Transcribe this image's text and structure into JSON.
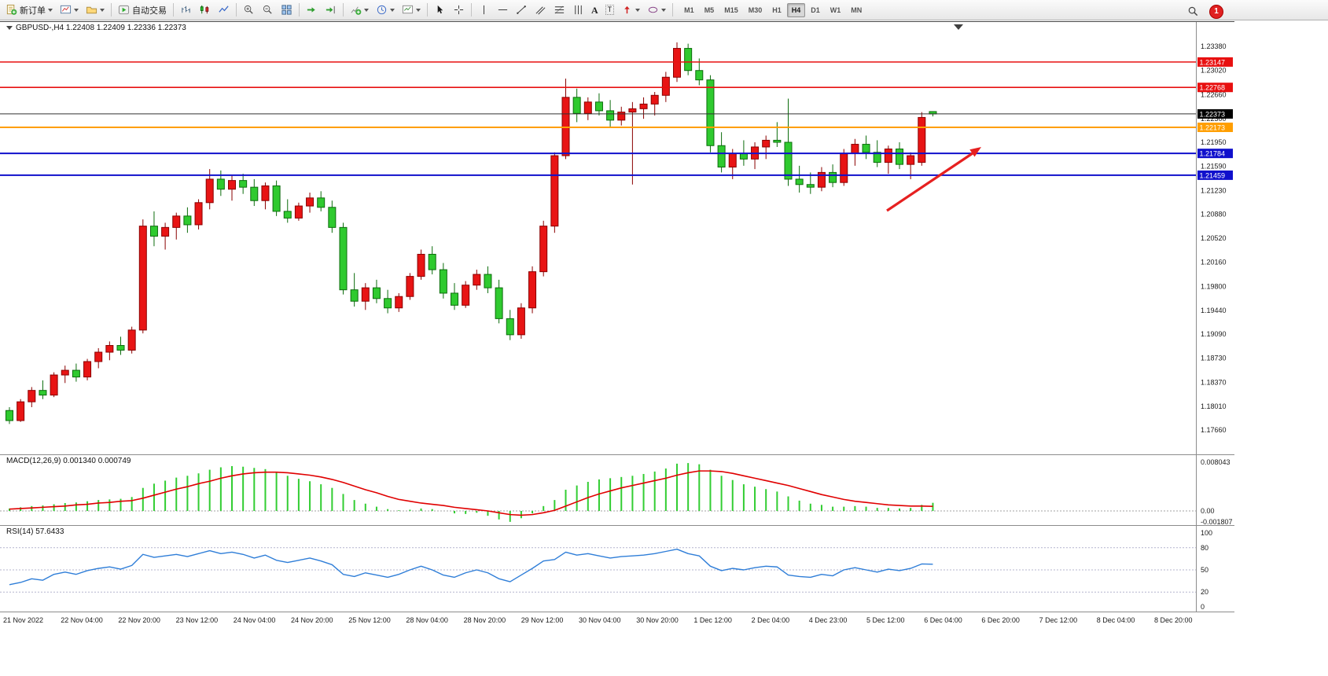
{
  "toolbar": {
    "new_order_label": "新订单",
    "auto_trading_label": "自动交易",
    "text_tool_glyph": "A",
    "label_tool_glyph": "T",
    "timeframes": [
      "M1",
      "M5",
      "M15",
      "M30",
      "H1",
      "H4",
      "D1",
      "W1",
      "MN"
    ],
    "active_timeframe": "H4",
    "notification_count": "1"
  },
  "chart_data": [
    {
      "type": "candlestick",
      "symbol": "GBPUSD-",
      "timeframe": "H4",
      "title_text": "GBPUSD-,H4 1.22408 1.22409 1.22336 1.22373",
      "ohlc": {
        "open": "1.22408",
        "high": "1.22409",
        "low": "1.22336",
        "close": "1.22373"
      },
      "bull_color": "#e81414",
      "bear_color": "#2fca2f",
      "ylim": [
        1.1731,
        1.2374
      ],
      "price_ticks": [
        "1.23380",
        "1.23020",
        "1.22660",
        "1.22300",
        "1.21950",
        "1.21590",
        "1.21230",
        "1.20880",
        "1.20520",
        "1.20160",
        "1.19800",
        "1.19440",
        "1.19090",
        "1.18730",
        "1.18370",
        "1.18010",
        "1.17660"
      ],
      "levels": [
        {
          "price": 1.23147,
          "label": "1.23147",
          "line": "#e81010",
          "box": "#e81010",
          "w": 1.6
        },
        {
          "price": 1.22768,
          "label": "1.22768",
          "line": "#e81010",
          "box": "#e81010",
          "w": 1.6
        },
        {
          "price": 1.22373,
          "label": "1.22373",
          "line": "#303030",
          "box": "#000000",
          "w": 1
        },
        {
          "price": 1.22173,
          "label": "1.22173",
          "line": "#ff9e00",
          "box": "#ff9e00",
          "w": 2
        },
        {
          "price": 1.21784,
          "label": "1.21784",
          "line": "#1010cc",
          "box": "#1010cc",
          "w": 2
        },
        {
          "price": 1.21459,
          "label": "1.21459",
          "line": "#1010cc",
          "box": "#1010cc",
          "w": 2
        }
      ],
      "time_labels": [
        "21 Nov 2022",
        "22 Nov 04:00",
        "22 Nov 20:00",
        "23 Nov 12:00",
        "24 Nov 04:00",
        "24 Nov 20:00",
        "25 Nov 12:00",
        "28 Nov 04:00",
        "28 Nov 20:00",
        "29 Nov 12:00",
        "30 Nov 04:00",
        "30 Nov 20:00",
        "1 Dec 12:00",
        "2 Dec 04:00",
        "4 Dec 23:00",
        "5 Dec 12:00",
        "6 Dec 04:00",
        "6 Dec 20:00",
        "7 Dec 12:00",
        "8 Dec 04:00",
        "8 Dec 20:00"
      ],
      "annotations": [
        {
          "type": "arrow",
          "color": "#e62020",
          "note": "red up arrow pointing toward 1.21784 level"
        }
      ],
      "candles": [
        [
          1.1795,
          1.18,
          1.1775,
          1.178
        ],
        [
          1.178,
          1.1812,
          1.1778,
          1.1808
        ],
        [
          1.1808,
          1.183,
          1.18,
          1.1825
        ],
        [
          1.1825,
          1.184,
          1.1812,
          1.1818
        ],
        [
          1.1818,
          1.1852,
          1.1815,
          1.1848
        ],
        [
          1.1848,
          1.1862,
          1.1836,
          1.1855
        ],
        [
          1.1855,
          1.1865,
          1.1838,
          1.1845
        ],
        [
          1.1845,
          1.1872,
          1.184,
          1.1868
        ],
        [
          1.1868,
          1.1888,
          1.1858,
          1.1882
        ],
        [
          1.1882,
          1.1898,
          1.187,
          1.1892
        ],
        [
          1.1892,
          1.1905,
          1.1878,
          1.1885
        ],
        [
          1.1885,
          1.192,
          1.188,
          1.1915
        ],
        [
          1.1915,
          1.208,
          1.191,
          1.207
        ],
        [
          1.207,
          1.2092,
          1.204,
          1.2055
        ],
        [
          1.2055,
          1.2075,
          1.2035,
          1.2068
        ],
        [
          1.2068,
          1.209,
          1.205,
          1.2085
        ],
        [
          1.2085,
          1.2098,
          1.206,
          1.2072
        ],
        [
          1.2072,
          1.211,
          1.2065,
          1.2105
        ],
        [
          1.2105,
          1.2155,
          1.2095,
          1.214
        ],
        [
          1.214,
          1.2153,
          1.2115,
          1.2125
        ],
        [
          1.2125,
          1.2145,
          1.2108,
          1.2138
        ],
        [
          1.2138,
          1.2148,
          1.2118,
          1.2128
        ],
        [
          1.2128,
          1.214,
          1.21,
          1.2108
        ],
        [
          1.2108,
          1.2135,
          1.2095,
          1.213
        ],
        [
          1.213,
          1.2138,
          1.2085,
          1.2092
        ],
        [
          1.2092,
          1.211,
          1.2075,
          1.2082
        ],
        [
          1.2082,
          1.2105,
          1.2078,
          1.21
        ],
        [
          1.21,
          1.212,
          1.209,
          1.2112
        ],
        [
          1.2112,
          1.2122,
          1.2092,
          1.2098
        ],
        [
          1.2098,
          1.2108,
          1.206,
          1.2068
        ],
        [
          1.2068,
          1.2075,
          1.1968,
          1.1975
        ],
        [
          1.1975,
          1.2,
          1.195,
          1.1958
        ],
        [
          1.1958,
          1.1985,
          1.1945,
          1.1978
        ],
        [
          1.1978,
          1.199,
          1.1955,
          1.1962
        ],
        [
          1.1962,
          1.1975,
          1.194,
          1.1948
        ],
        [
          1.1948,
          1.197,
          1.1942,
          1.1965
        ],
        [
          1.1965,
          1.2,
          1.196,
          1.1995
        ],
        [
          1.1995,
          1.2035,
          1.199,
          1.2028
        ],
        [
          1.2028,
          1.204,
          1.1998,
          1.2005
        ],
        [
          1.2005,
          1.2015,
          1.1962,
          1.197
        ],
        [
          1.197,
          1.1985,
          1.1945,
          1.1952
        ],
        [
          1.1952,
          1.1988,
          1.1948,
          1.1982
        ],
        [
          1.1982,
          1.2005,
          1.1975,
          1.1998
        ],
        [
          1.1998,
          1.201,
          1.197,
          1.1978
        ],
        [
          1.1978,
          1.199,
          1.1925,
          1.1932
        ],
        [
          1.1932,
          1.1945,
          1.19,
          1.1908
        ],
        [
          1.1908,
          1.1955,
          1.1902,
          1.1948
        ],
        [
          1.1948,
          1.201,
          1.194,
          1.2002
        ],
        [
          1.2002,
          1.2078,
          1.1995,
          1.207
        ],
        [
          1.207,
          1.218,
          1.206,
          1.2175
        ],
        [
          1.2175,
          1.229,
          1.217,
          1.2262
        ],
        [
          1.2262,
          1.2275,
          1.2225,
          1.2238
        ],
        [
          1.2238,
          1.2262,
          1.2228,
          1.2255
        ],
        [
          1.2255,
          1.2268,
          1.2235,
          1.2242
        ],
        [
          1.2242,
          1.2258,
          1.2218,
          1.2228
        ],
        [
          1.2228,
          1.2248,
          1.222,
          1.224
        ],
        [
          1.224,
          1.2255,
          1.2132,
          1.2245
        ],
        [
          1.2245,
          1.2262,
          1.223,
          1.2252
        ],
        [
          1.2252,
          1.227,
          1.2235,
          1.2265
        ],
        [
          1.2265,
          1.23,
          1.2255,
          1.2292
        ],
        [
          1.2292,
          1.2344,
          1.2285,
          1.2335
        ],
        [
          1.2335,
          1.2342,
          1.2295,
          1.2302
        ],
        [
          1.2302,
          1.232,
          1.228,
          1.2288
        ],
        [
          1.2288,
          1.2295,
          1.218,
          1.219
        ],
        [
          1.219,
          1.221,
          1.215,
          1.2158
        ],
        [
          1.2158,
          1.2185,
          1.214,
          1.2178
        ],
        [
          1.2178,
          1.2198,
          1.216,
          1.217
        ],
        [
          1.217,
          1.2195,
          1.2155,
          1.2188
        ],
        [
          1.2188,
          1.2205,
          1.217,
          1.2198
        ],
        [
          1.2198,
          1.2225,
          1.2188,
          1.2195
        ],
        [
          1.2195,
          1.226,
          1.213,
          1.214
        ],
        [
          1.214,
          1.216,
          1.212,
          1.2132
        ],
        [
          1.2132,
          1.215,
          1.2118,
          1.2128
        ],
        [
          1.2128,
          1.2158,
          1.2122,
          1.215
        ],
        [
          1.215,
          1.2162,
          1.2128,
          1.2135
        ],
        [
          1.2135,
          1.2185,
          1.213,
          1.2178
        ],
        [
          1.2178,
          1.22,
          1.216,
          1.2192
        ],
        [
          1.2192,
          1.2205,
          1.217,
          1.218
        ],
        [
          1.218,
          1.2198,
          1.2158,
          1.2165
        ],
        [
          1.2165,
          1.219,
          1.2148,
          1.2185
        ],
        [
          1.2185,
          1.2195,
          1.2155,
          1.2162
        ],
        [
          1.2162,
          1.218,
          1.214,
          1.2175
        ],
        [
          1.2165,
          1.224,
          1.216,
          1.2232
        ],
        [
          1.22408,
          1.22409,
          1.22336,
          1.22373
        ]
      ]
    },
    {
      "type": "bar",
      "name": "MACD",
      "params": "12,26,9",
      "title_text": "MACD(12,26,9) 0.001340 0.000749",
      "current_main": "0.001340",
      "current_signal": "0.000749",
      "bar_color": "#32cd32",
      "signal_color": "#e00000",
      "ylim": [
        -0.0023,
        0.0093
      ],
      "ticks": [
        {
          "label": "0.008043",
          "value": 0.008043
        },
        {
          "label": "0.00",
          "value": 0
        },
        {
          "label": "-0.001807",
          "value": -0.001807
        }
      ],
      "values": [
        0.0004,
        0.0006,
        0.0008,
        0.0009,
        0.0011,
        0.0013,
        0.0014,
        0.0016,
        0.0018,
        0.0019,
        0.002,
        0.0023,
        0.0038,
        0.0045,
        0.005,
        0.0055,
        0.0058,
        0.0062,
        0.0068,
        0.0072,
        0.0074,
        0.0073,
        0.0071,
        0.0069,
        0.0064,
        0.0058,
        0.0053,
        0.0049,
        0.0044,
        0.0038,
        0.0028,
        0.0018,
        0.0012,
        0.0007,
        0.0003,
        0.0001,
        0.0002,
        0.0004,
        0.0003,
        0.0,
        -0.0004,
        -0.0005,
        -0.0003,
        -0.0008,
        -0.0014,
        -0.0018,
        -0.0012,
        -0.0004,
        0.0008,
        0.0018,
        0.0035,
        0.0042,
        0.0048,
        0.0052,
        0.0054,
        0.0056,
        0.0058,
        0.0061,
        0.0065,
        0.007,
        0.0078,
        0.0079,
        0.0077,
        0.0068,
        0.0058,
        0.0051,
        0.0044,
        0.004,
        0.0036,
        0.0032,
        0.0024,
        0.0017,
        0.0012,
        0.001,
        0.0007,
        0.0007,
        0.0008,
        0.0007,
        0.0005,
        0.0005,
        0.0004,
        0.0005,
        0.001,
        0.00134
      ],
      "signal": [
        0.0003,
        0.0004,
        0.0005,
        0.0006,
        0.0007,
        0.0008,
        0.001,
        0.0011,
        0.0013,
        0.0014,
        0.0016,
        0.0017,
        0.0021,
        0.0026,
        0.0031,
        0.0036,
        0.004,
        0.0045,
        0.0049,
        0.0054,
        0.0058,
        0.0061,
        0.0063,
        0.0064,
        0.0064,
        0.0063,
        0.0061,
        0.0059,
        0.0056,
        0.0052,
        0.0047,
        0.0041,
        0.0035,
        0.003,
        0.0024,
        0.0019,
        0.0016,
        0.0013,
        0.0011,
        0.0009,
        0.0006,
        0.0004,
        0.0002,
        0.0,
        -0.0003,
        -0.0006,
        -0.0007,
        -0.0006,
        -0.0003,
        0.0001,
        0.0008,
        0.0015,
        0.0022,
        0.0028,
        0.0033,
        0.0038,
        0.0042,
        0.0046,
        0.005,
        0.0054,
        0.0059,
        0.0063,
        0.0066,
        0.0066,
        0.0065,
        0.0062,
        0.0058,
        0.0054,
        0.005,
        0.0046,
        0.0042,
        0.0037,
        0.0032,
        0.0027,
        0.0023,
        0.0019,
        0.0016,
        0.0014,
        0.0012,
        0.001,
        0.0009,
        0.0008,
        0.0008,
        0.000749
      ]
    },
    {
      "type": "line",
      "name": "RSI",
      "params": "14",
      "title_text": "RSI(14) 57.6433",
      "current": "57.6433",
      "line_color": "#2f7ed8",
      "ylim": [
        0,
        100
      ],
      "ticks": [
        {
          "label": "100",
          "value": 100
        },
        {
          "label": "80",
          "value": 80
        },
        {
          "label": "50",
          "value": 50
        },
        {
          "label": "20",
          "value": 20
        },
        {
          "label": "0",
          "value": 0
        }
      ],
      "levels_dashed": [
        80,
        50,
        20
      ],
      "values": [
        30,
        33,
        38,
        36,
        44,
        47,
        44,
        49,
        52,
        54,
        51,
        56,
        71,
        67,
        69,
        71,
        68,
        72,
        76,
        72,
        74,
        71,
        66,
        70,
        63,
        60,
        63,
        66,
        62,
        57,
        44,
        41,
        46,
        43,
        40,
        44,
        50,
        55,
        50,
        43,
        40,
        46,
        50,
        46,
        38,
        34,
        43,
        52,
        62,
        64,
        74,
        70,
        72,
        69,
        66,
        68,
        69,
        70,
        72,
        75,
        78,
        72,
        69,
        55,
        49,
        52,
        50,
        53,
        55,
        54,
        43,
        41,
        40,
        44,
        42,
        50,
        53,
        50,
        47,
        51,
        49,
        52,
        58,
        57.64
      ]
    }
  ]
}
